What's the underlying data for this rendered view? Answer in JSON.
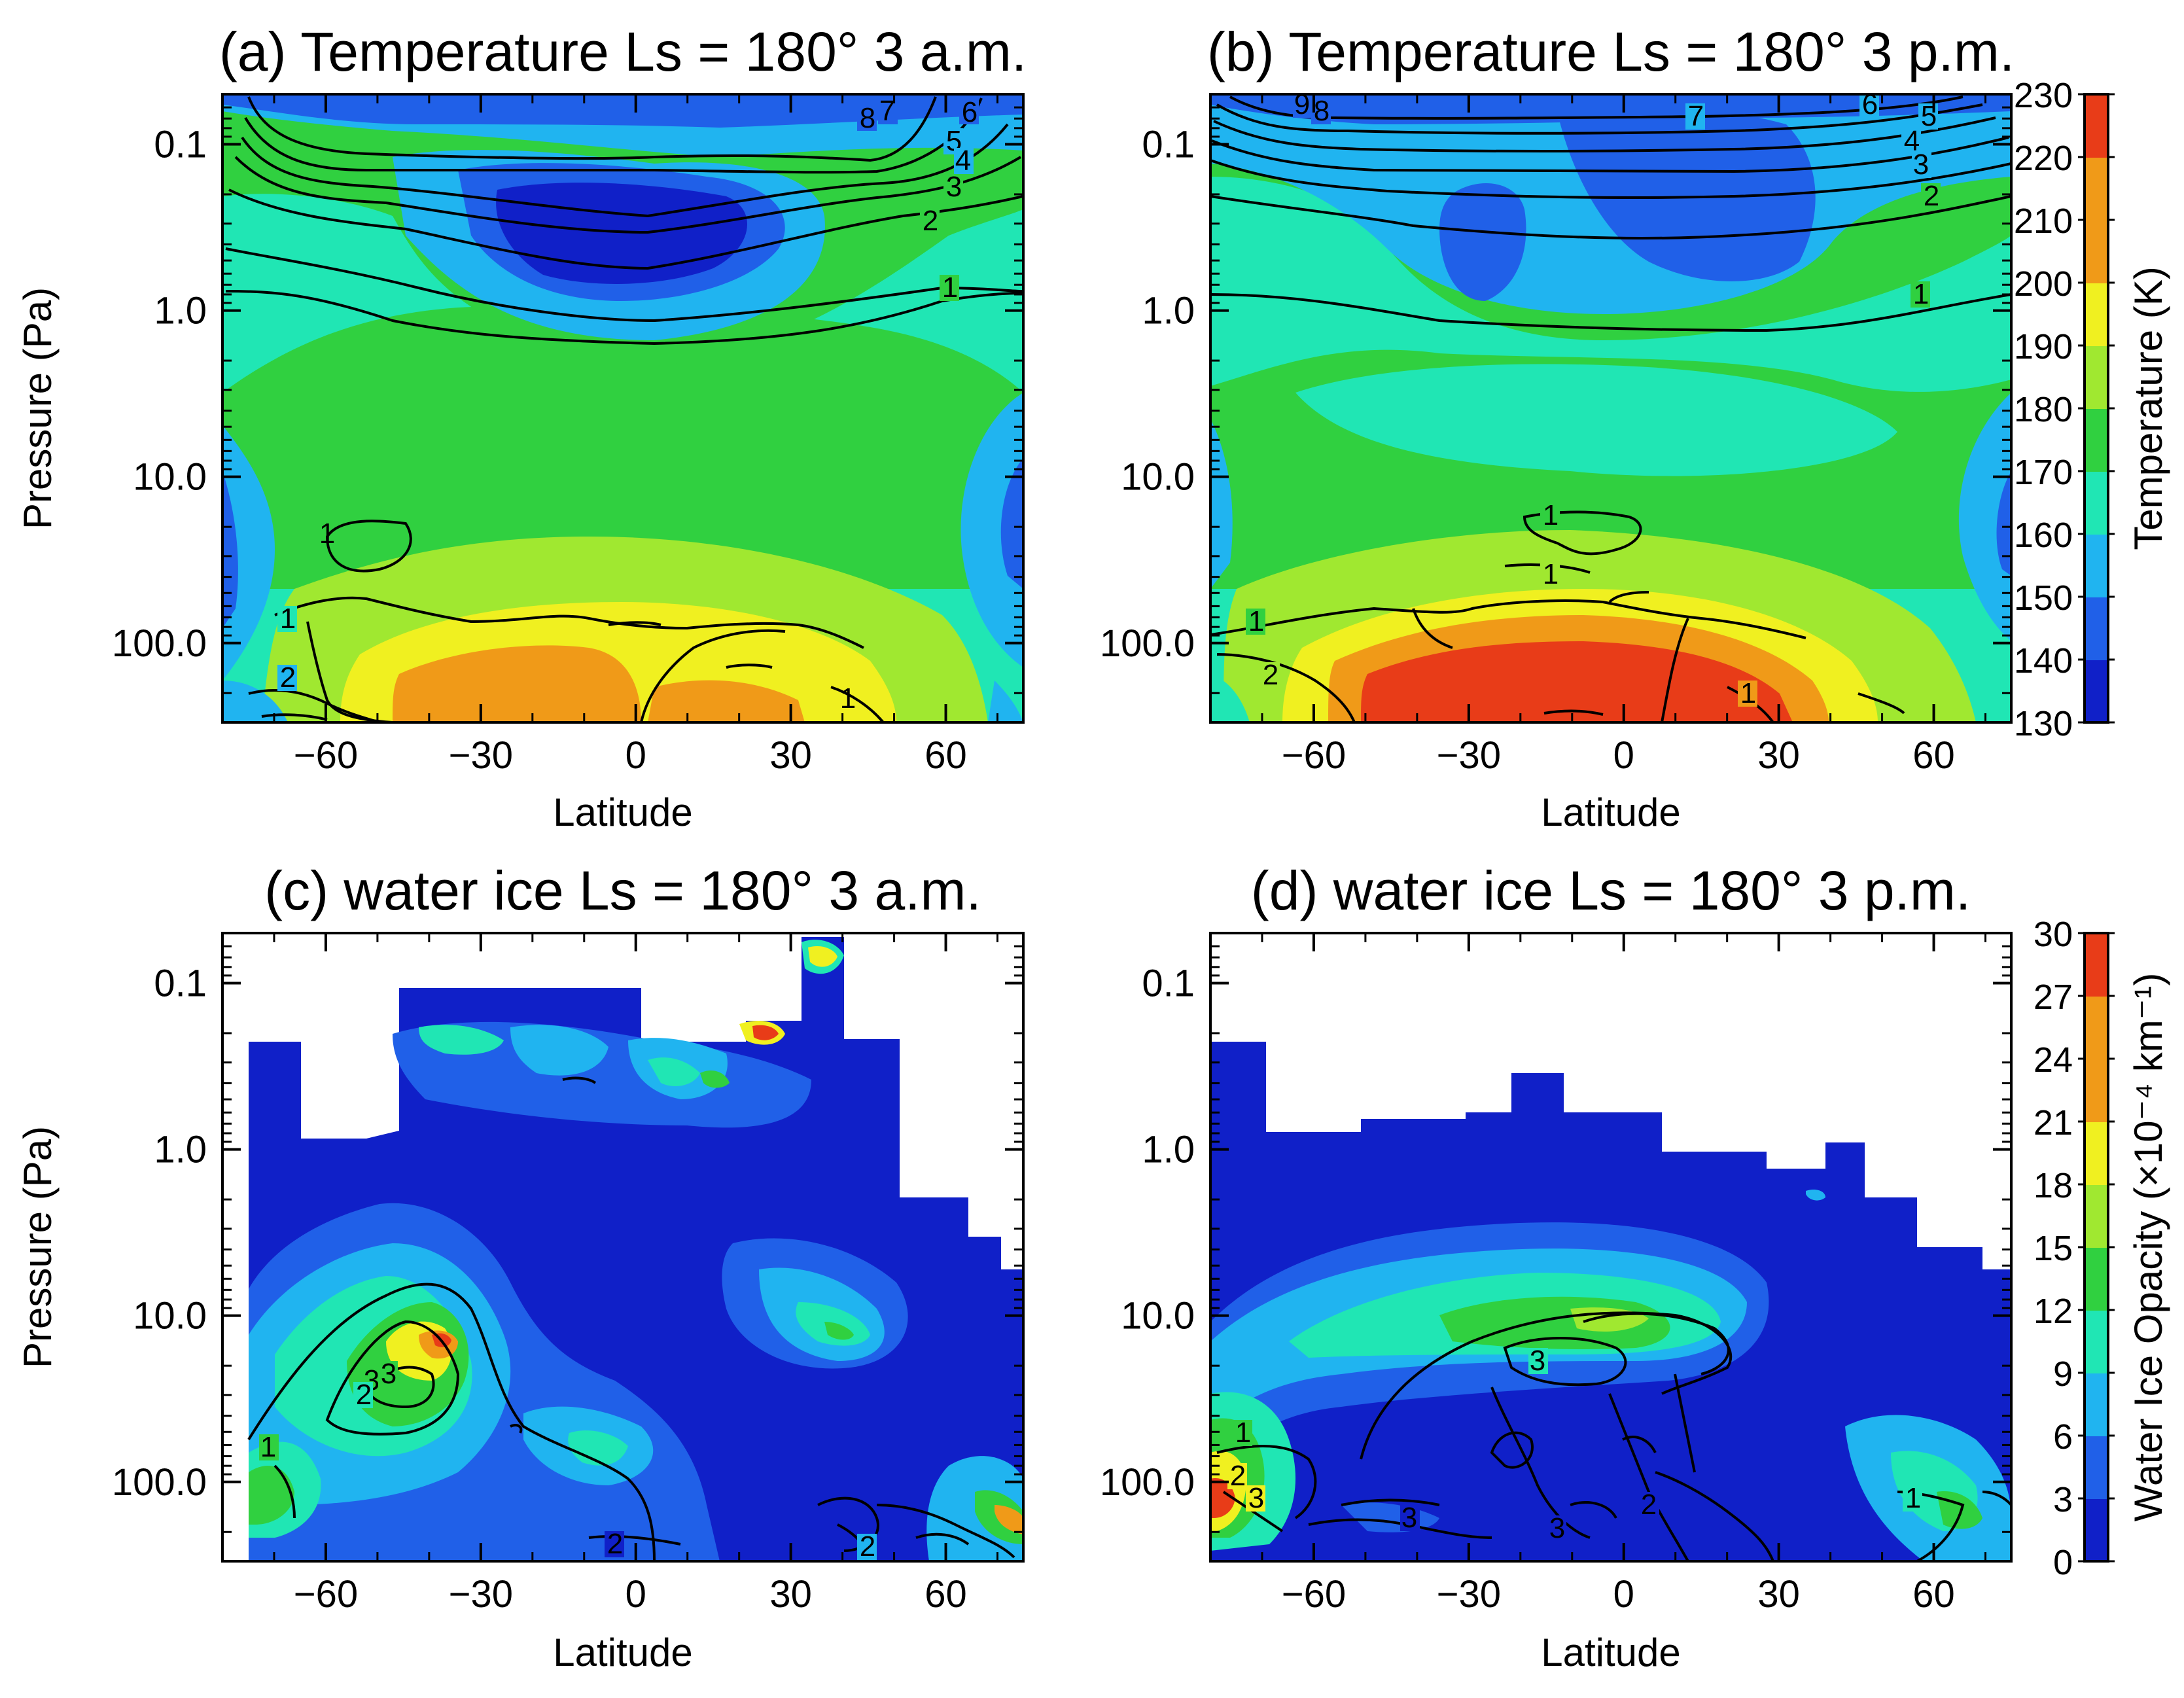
{
  "colors": {
    "levels": [
      "#1020c8",
      "#2060e8",
      "#20b4f0",
      "#20e6b4",
      "#30d040",
      "#a0e830",
      "#f0f020",
      "#f09a18",
      "#e83c18"
    ]
  },
  "chart_data": [
    {
      "type": "contour",
      "panel": "a",
      "title": "(a) Temperature Ls = 180° 3 a.m.",
      "xlabel": "Latitude",
      "ylabel": "Pressure (Pa)",
      "xlim": [
        -80,
        75
      ],
      "ylim": [
        0.05,
        300
      ],
      "xticks": [
        -60,
        -30,
        0,
        30,
        60
      ],
      "xticklabels": [
        "−60",
        "−30",
        "0",
        "30",
        "60"
      ],
      "yticks": [
        0.1,
        1.0,
        10.0,
        100.0
      ],
      "yticklabels": [
        "0.1",
        "1.0",
        "10.0",
        "100.0"
      ],
      "filled_variable": "Temperature (K)",
      "levels": [
        130,
        140,
        150,
        160,
        170,
        180,
        190,
        200,
        210,
        220,
        230
      ],
      "contour_labels": [
        "1",
        "2",
        "3",
        "4",
        "5",
        "6",
        "7",
        "8",
        "1",
        "1",
        "1",
        "2"
      ]
    },
    {
      "type": "contour",
      "panel": "b",
      "title": "(b) Temperature Ls = 180° 3 p.m.",
      "xlabel": "Latitude",
      "ylabel": "",
      "xlim": [
        -80,
        75
      ],
      "ylim": [
        0.05,
        300
      ],
      "xticks": [
        -60,
        -30,
        0,
        30,
        60
      ],
      "xticklabels": [
        "−60",
        "−30",
        "0",
        "30",
        "60"
      ],
      "yticks": [
        0.1,
        1.0,
        10.0,
        100.0
      ],
      "yticklabels": [
        "0.1",
        "1.0",
        "10.0",
        "100.0"
      ],
      "filled_variable": "Temperature (K)",
      "levels": [
        130,
        140,
        150,
        160,
        170,
        180,
        190,
        200,
        210,
        220,
        230
      ],
      "contour_labels": [
        "9",
        "8",
        "7",
        "6",
        "5",
        "4",
        "3",
        "2",
        "1",
        "1",
        "1",
        "1",
        "1",
        "2"
      ]
    },
    {
      "type": "contour",
      "panel": "c",
      "title": "(c) water ice Ls = 180° 3 a.m.",
      "xlabel": "Latitude",
      "ylabel": "Pressure (Pa)",
      "xlim": [
        -80,
        75
      ],
      "ylim": [
        0.05,
        300
      ],
      "xticks": [
        -60,
        -30,
        0,
        30,
        60
      ],
      "xticklabels": [
        "−60",
        "−30",
        "0",
        "30",
        "60"
      ],
      "yticks": [
        0.1,
        1.0,
        10.0,
        100.0
      ],
      "yticklabels": [
        "0.1",
        "1.0",
        "10.0",
        "100.0"
      ],
      "filled_variable": "Water Ice Opacity (×10⁻⁴ km⁻¹)",
      "levels": [
        0,
        3,
        6,
        9,
        12,
        15,
        18,
        21,
        24,
        27,
        30
      ],
      "contour_labels": [
        "3",
        "3",
        "2",
        "1",
        "2",
        "2"
      ]
    },
    {
      "type": "contour",
      "panel": "d",
      "title": "(d) water ice Ls = 180° 3 p.m.",
      "xlabel": "Latitude",
      "ylabel": "",
      "xlim": [
        -80,
        75
      ],
      "ylim": [
        0.05,
        300
      ],
      "xticks": [
        -60,
        -30,
        0,
        30,
        60
      ],
      "xticklabels": [
        "−60",
        "−30",
        "0",
        "30",
        "60"
      ],
      "yticks": [
        0.1,
        1.0,
        10.0,
        100.0
      ],
      "yticklabels": [
        "0.1",
        "1.0",
        "10.0",
        "100.0"
      ],
      "filled_variable": "Water Ice Opacity (×10⁻⁴ km⁻¹)",
      "levels": [
        0,
        3,
        6,
        9,
        12,
        15,
        18,
        21,
        24,
        27,
        30
      ],
      "contour_labels": [
        "3",
        "3",
        "1",
        "2",
        "3",
        "3",
        "2",
        "1"
      ]
    }
  ],
  "colorbars": {
    "temperature": {
      "label": "Temperature (K)",
      "ticks": [
        "130",
        "140",
        "150",
        "160",
        "170",
        "180",
        "190",
        "200",
        "210",
        "220",
        "230"
      ]
    },
    "water_ice": {
      "label": "Water Ice Opacity (×10⁻⁴ km⁻¹)",
      "ticks": [
        "0",
        "3",
        "6",
        "9",
        "12",
        "15",
        "18",
        "21",
        "24",
        "27",
        "30"
      ]
    }
  }
}
